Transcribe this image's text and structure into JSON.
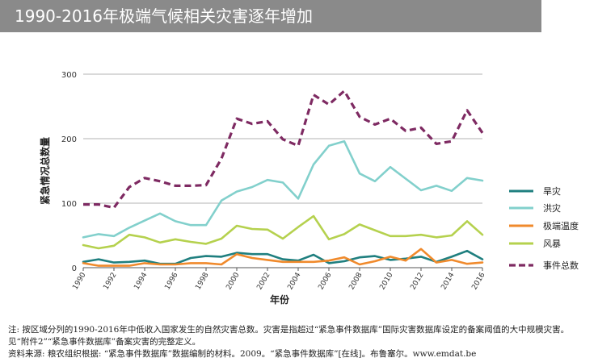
{
  "header": {
    "title": "1990-2016年极端气候相关灾害逐年增加"
  },
  "colors": {
    "banner": "#8a8a8a",
    "旱灾": "#1f7f7f",
    "洪灾": "#82d0cc",
    "极端温度": "#f08a2c",
    "风暴": "#b5d14e",
    "事件总数": "#7e2a62"
  },
  "chart_data": {
    "type": "line",
    "xlabel": "年份",
    "ylabel": "紧急情况总数量",
    "ylim": [
      0,
      300
    ],
    "yticks": [
      0,
      100,
      200,
      300
    ],
    "xticks": [
      1990,
      1992,
      1994,
      1996,
      1998,
      2000,
      2002,
      2004,
      2006,
      2008,
      2010,
      2012,
      2014,
      2016
    ],
    "grid": true,
    "legend_position": "right",
    "x": [
      1990,
      1991,
      1992,
      1993,
      1994,
      1995,
      1996,
      1997,
      1998,
      1999,
      2000,
      2001,
      2002,
      2003,
      2004,
      2005,
      2006,
      2007,
      2008,
      2009,
      2010,
      2011,
      2012,
      2013,
      2014,
      2015,
      2016
    ],
    "series": [
      {
        "name": "旱灾",
        "color": "#1f7f7f",
        "dashed": false,
        "values": [
          9,
          13,
          8,
          9,
          11,
          6,
          6,
          15,
          18,
          17,
          23,
          21,
          21,
          13,
          11,
          20,
          7,
          10,
          16,
          18,
          12,
          14,
          17,
          9,
          17,
          26,
          13
        ]
      },
      {
        "name": "洪灾",
        "color": "#82d0cc",
        "dashed": false,
        "values": [
          47,
          52,
          49,
          62,
          73,
          84,
          72,
          66,
          66,
          104,
          118,
          125,
          136,
          132,
          107,
          160,
          189,
          196,
          146,
          134,
          156,
          138,
          120,
          127,
          119,
          139,
          135
        ]
      },
      {
        "name": "极端温度",
        "color": "#f08a2c",
        "dashed": false,
        "values": [
          7,
          3,
          3,
          3,
          7,
          5,
          5,
          7,
          7,
          5,
          21,
          15,
          12,
          9,
          9,
          9,
          11,
          16,
          5,
          10,
          17,
          11,
          29,
          8,
          12,
          6,
          8
        ]
      },
      {
        "name": "风暴",
        "color": "#b5d14e",
        "dashed": false,
        "values": [
          35,
          30,
          34,
          51,
          47,
          39,
          44,
          40,
          37,
          45,
          65,
          60,
          59,
          45,
          63,
          80,
          44,
          52,
          67,
          58,
          49,
          49,
          51,
          47,
          50,
          72,
          51
        ]
      },
      {
        "name": "事件总数",
        "color": "#7e2a62",
        "dashed": true,
        "values": [
          98,
          98,
          93,
          125,
          139,
          134,
          127,
          127,
          128,
          169,
          231,
          223,
          227,
          199,
          189,
          268,
          253,
          274,
          234,
          222,
          231,
          212,
          217,
          192,
          196,
          244,
          209
        ]
      }
    ]
  },
  "footnotes": {
    "line1": "注: 按区域分列的1990-2016年中低收入国家发生的自然灾害总数。灾害是指超过“紧急事件数据库”国际灾害数据库设定的备案阈值的大中规模灾害。",
    "line2": "见“附件2”“紧急事件数据库”备案灾害的完整定义。",
    "line3": "资料来源: 粮农组织根据: “紧急事件数据库”数据编制的材料。2009。“紧急事件数据库”[在线]。布鲁塞尔。www.emdat.be"
  }
}
